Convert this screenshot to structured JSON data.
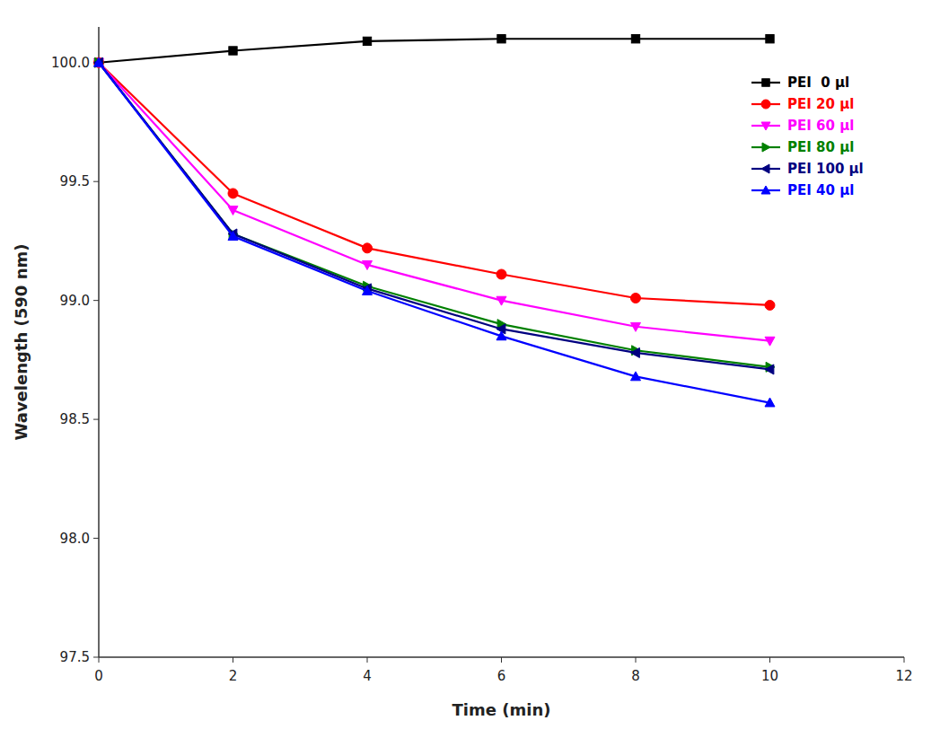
{
  "chart_data": {
    "type": "line",
    "xlabel": "Time (min)",
    "ylabel": "Wavelength (590 nm)",
    "xlim": [
      0,
      12
    ],
    "ylim": [
      97.5,
      100.15
    ],
    "xticks": [
      0,
      2,
      4,
      6,
      8,
      10,
      12
    ],
    "yticks": [
      97.5,
      {
        "value": 98.0,
        "label": "98.0"
      },
      98.5,
      {
        "value": 99.0,
        "label": "99.0"
      },
      99.5,
      {
        "value": 100.0,
        "label": "100.0"
      }
    ],
    "grid": false,
    "legend": "upper-right",
    "series": [
      {
        "name": "PEI  0 μl",
        "color": "#000000",
        "marker": "square",
        "x": [
          0,
          2,
          4,
          6,
          8,
          10
        ],
        "values": [
          100.0,
          100.05,
          100.09,
          100.1,
          100.1,
          100.1
        ]
      },
      {
        "name": "PEI 20 μl",
        "color": "#ff0000",
        "marker": "circle",
        "x": [
          0,
          2,
          4,
          6,
          8,
          10
        ],
        "values": [
          100.0,
          99.45,
          99.22,
          99.11,
          99.01,
          98.98
        ]
      },
      {
        "name": "PEI 60 μl",
        "color": "#ff00ff",
        "marker": "triangle-down",
        "x": [
          0,
          2,
          4,
          6,
          8,
          10
        ],
        "values": [
          100.0,
          99.38,
          99.15,
          99.0,
          98.89,
          98.83
        ]
      },
      {
        "name": "PEI 80 μl",
        "color": "#008000",
        "marker": "triangle-right",
        "x": [
          0,
          2,
          4,
          6,
          8,
          10
        ],
        "values": [
          100.0,
          99.28,
          99.06,
          98.9,
          98.79,
          98.72
        ]
      },
      {
        "name": "PEI 100 μl",
        "color": "#000080",
        "marker": "triangle-left",
        "x": [
          0,
          2,
          4,
          6,
          8,
          10
        ],
        "values": [
          100.0,
          99.28,
          99.05,
          98.88,
          98.78,
          98.71
        ]
      },
      {
        "name": "PEI 40 μl",
        "color": "#0000ff",
        "marker": "triangle-up",
        "x": [
          0,
          2,
          4,
          6,
          8,
          10
        ],
        "values": [
          100.0,
          99.27,
          99.04,
          98.85,
          98.68,
          98.57
        ]
      }
    ]
  }
}
